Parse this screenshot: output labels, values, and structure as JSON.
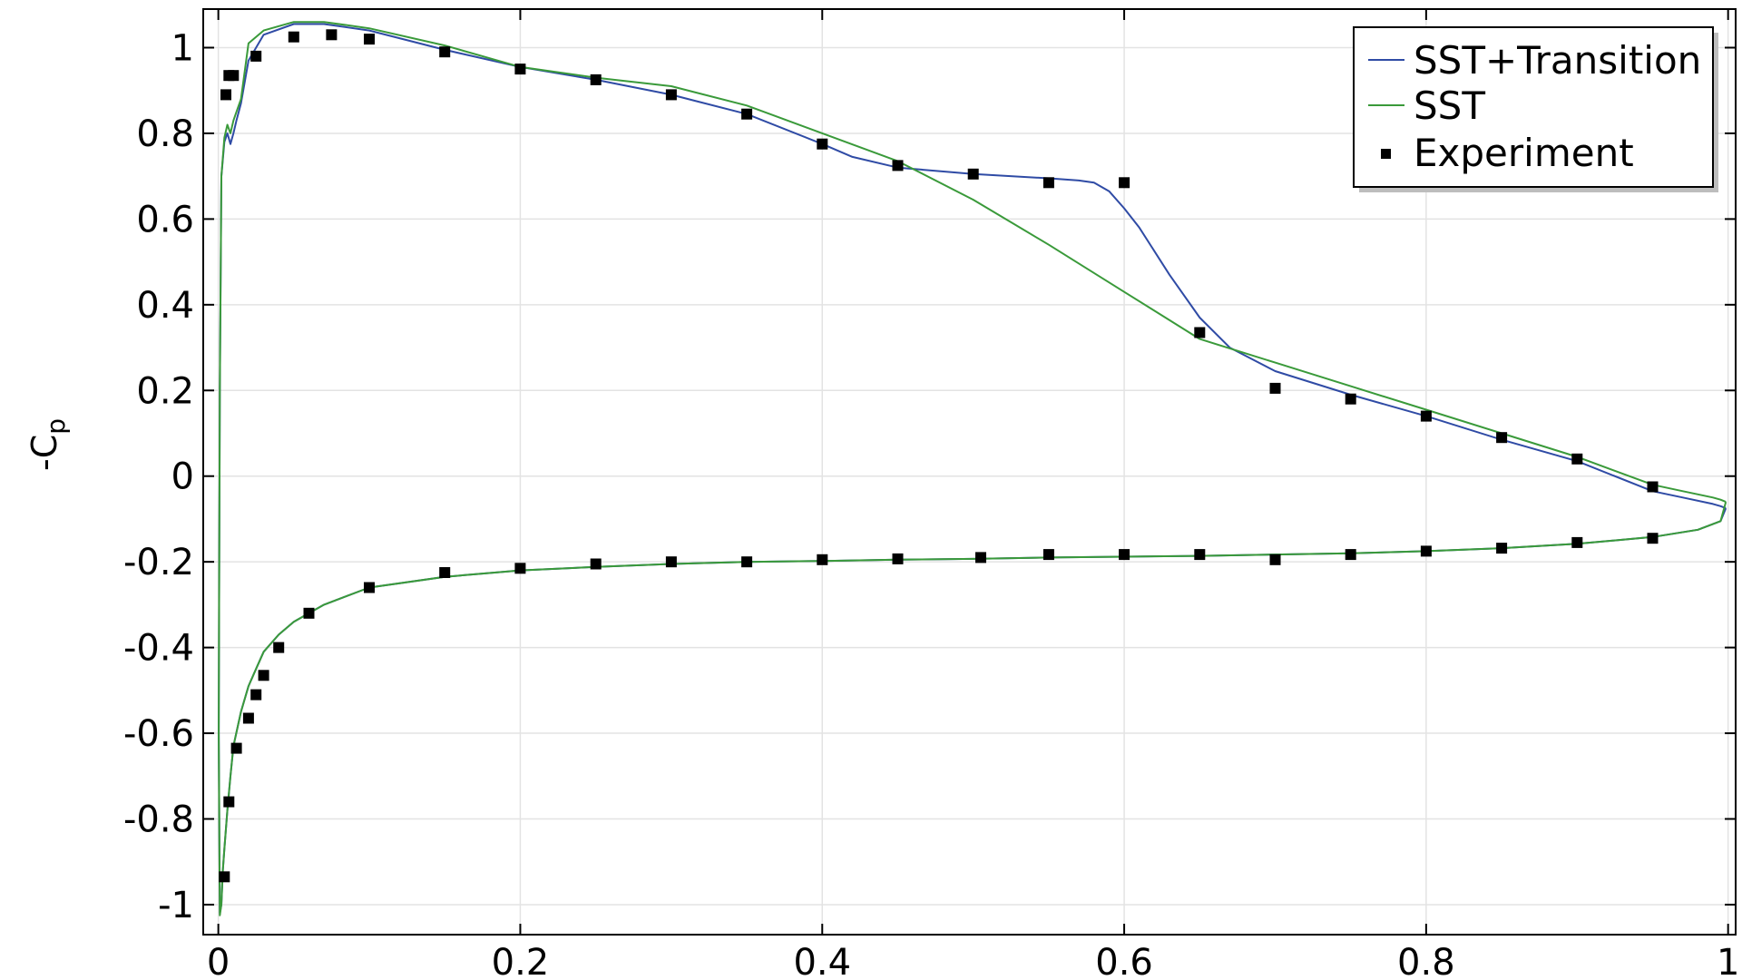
{
  "chart_data": {
    "type": "line",
    "title": "",
    "xlabel": "",
    "ylabel": "-C",
    "ylabel_subscript": "p",
    "xlim": [
      -0.01,
      1.005
    ],
    "ylim": [
      -1.07,
      1.09
    ],
    "x_ticks": [
      0,
      0.2,
      0.4,
      0.6,
      0.8,
      1
    ],
    "x_tick_labels": [
      "0",
      "0.2",
      "0.4",
      "0.6",
      "0.8",
      "1"
    ],
    "y_ticks": [
      -1,
      -0.8,
      -0.6,
      -0.4,
      -0.2,
      0,
      0.2,
      0.4,
      0.6,
      0.8,
      1
    ],
    "y_tick_labels": [
      "-1",
      "-0.8",
      "-0.6",
      "-0.4",
      "-0.2",
      "0",
      "0.2",
      "0.4",
      "0.6",
      "0.8",
      "1"
    ],
    "grid": true,
    "legend_position": "top-right",
    "series": [
      {
        "name": "SST+Transition",
        "color": "#2f4ba5",
        "style": "line",
        "x": [
          0.9985,
          0.995,
          0.99,
          0.97,
          0.95,
          0.9,
          0.85,
          0.8,
          0.75,
          0.7,
          0.67,
          0.65,
          0.63,
          0.61,
          0.6,
          0.59,
          0.58,
          0.57,
          0.55,
          0.5,
          0.45,
          0.42,
          0.4,
          0.35,
          0.3,
          0.25,
          0.2,
          0.15,
          0.1,
          0.07,
          0.05,
          0.03,
          0.02,
          0.015,
          0.012,
          0.01,
          0.008,
          0.006,
          0.004,
          0.002,
          0.001,
          0.0005,
          0.0003,
          0.001,
          0.002,
          0.003,
          0.004,
          0.006,
          0.008,
          0.01,
          0.015,
          0.02,
          0.025,
          0.03,
          0.04,
          0.05,
          0.07,
          0.1,
          0.15,
          0.2,
          0.25,
          0.3,
          0.35,
          0.4,
          0.45,
          0.5,
          0.55,
          0.6,
          0.65,
          0.7,
          0.75,
          0.8,
          0.85,
          0.9,
          0.95,
          0.98,
          0.995,
          0.9985
        ],
        "y": [
          -0.075,
          -0.07,
          -0.065,
          -0.05,
          -0.035,
          0.035,
          0.085,
          0.14,
          0.19,
          0.245,
          0.3,
          0.37,
          0.47,
          0.58,
          0.625,
          0.665,
          0.685,
          0.69,
          0.695,
          0.705,
          0.72,
          0.745,
          0.775,
          0.845,
          0.89,
          0.925,
          0.955,
          0.995,
          1.04,
          1.055,
          1.055,
          1.03,
          0.97,
          0.87,
          0.83,
          0.8,
          0.775,
          0.8,
          0.78,
          0.7,
          0.2,
          -0.3,
          -0.6,
          -1.02,
          -1.0,
          -0.92,
          -0.87,
          -0.78,
          -0.7,
          -0.63,
          -0.55,
          -0.49,
          -0.45,
          -0.41,
          -0.37,
          -0.34,
          -0.3,
          -0.26,
          -0.235,
          -0.22,
          -0.212,
          -0.205,
          -0.2,
          -0.198,
          -0.195,
          -0.193,
          -0.19,
          -0.188,
          -0.186,
          -0.183,
          -0.18,
          -0.175,
          -0.168,
          -0.158,
          -0.142,
          -0.125,
          -0.105,
          -0.075
        ]
      },
      {
        "name": "SST",
        "color": "#3a9a3a",
        "style": "line",
        "x": [
          0.9985,
          0.995,
          0.99,
          0.97,
          0.95,
          0.9,
          0.85,
          0.8,
          0.75,
          0.7,
          0.65,
          0.6,
          0.55,
          0.5,
          0.45,
          0.4,
          0.35,
          0.3,
          0.25,
          0.2,
          0.15,
          0.1,
          0.07,
          0.05,
          0.03,
          0.02,
          0.015,
          0.012,
          0.01,
          0.008,
          0.006,
          0.004,
          0.002,
          0.001,
          0.0005,
          0.0003,
          0.001,
          0.002,
          0.003,
          0.004,
          0.006,
          0.008,
          0.01,
          0.015,
          0.02,
          0.025,
          0.03,
          0.04,
          0.05,
          0.07,
          0.1,
          0.15,
          0.2,
          0.25,
          0.3,
          0.35,
          0.4,
          0.45,
          0.5,
          0.55,
          0.6,
          0.65,
          0.7,
          0.75,
          0.8,
          0.85,
          0.9,
          0.95,
          0.98,
          0.995,
          0.9985
        ],
        "y": [
          -0.06,
          -0.055,
          -0.05,
          -0.035,
          -0.02,
          0.045,
          0.1,
          0.155,
          0.21,
          0.265,
          0.32,
          0.43,
          0.54,
          0.645,
          0.735,
          0.8,
          0.865,
          0.91,
          0.93,
          0.955,
          1.005,
          1.045,
          1.06,
          1.06,
          1.04,
          1.01,
          0.88,
          0.85,
          0.83,
          0.8,
          0.82,
          0.79,
          0.7,
          0.2,
          -0.3,
          -0.6,
          -1.025,
          -1.0,
          -0.92,
          -0.87,
          -0.78,
          -0.7,
          -0.63,
          -0.55,
          -0.49,
          -0.45,
          -0.41,
          -0.37,
          -0.34,
          -0.3,
          -0.26,
          -0.235,
          -0.22,
          -0.212,
          -0.205,
          -0.2,
          -0.198,
          -0.195,
          -0.193,
          -0.19,
          -0.188,
          -0.186,
          -0.183,
          -0.18,
          -0.175,
          -0.168,
          -0.158,
          -0.142,
          -0.125,
          -0.105,
          -0.06
        ]
      },
      {
        "name": "Experiment",
        "color": "#000000",
        "style": "marker",
        "x": [
          0.005,
          0.007,
          0.01,
          0.025,
          0.05,
          0.075,
          0.1,
          0.15,
          0.2,
          0.25,
          0.3,
          0.35,
          0.4,
          0.45,
          0.5,
          0.55,
          0.6,
          0.65,
          0.7,
          0.75,
          0.8,
          0.85,
          0.9,
          0.95,
          0.004,
          0.007,
          0.012,
          0.02,
          0.025,
          0.03,
          0.04,
          0.06,
          0.1,
          0.15,
          0.2,
          0.25,
          0.3,
          0.35,
          0.4,
          0.45,
          0.505,
          0.55,
          0.6,
          0.65,
          0.7,
          0.75,
          0.8,
          0.85,
          0.9,
          0.95
        ],
        "y": [
          0.89,
          0.935,
          0.935,
          0.98,
          1.025,
          1.03,
          1.02,
          0.99,
          0.95,
          0.925,
          0.89,
          0.845,
          0.775,
          0.725,
          0.705,
          0.685,
          0.685,
          0.335,
          0.205,
          0.18,
          0.14,
          0.09,
          0.04,
          -0.025,
          -0.935,
          -0.76,
          -0.635,
          -0.565,
          -0.51,
          -0.465,
          -0.4,
          -0.32,
          -0.26,
          -0.225,
          -0.215,
          -0.205,
          -0.2,
          -0.2,
          -0.195,
          -0.193,
          -0.19,
          -0.183,
          -0.183,
          -0.183,
          -0.195,
          -0.183,
          -0.175,
          -0.168,
          -0.155,
          -0.145
        ]
      }
    ]
  }
}
